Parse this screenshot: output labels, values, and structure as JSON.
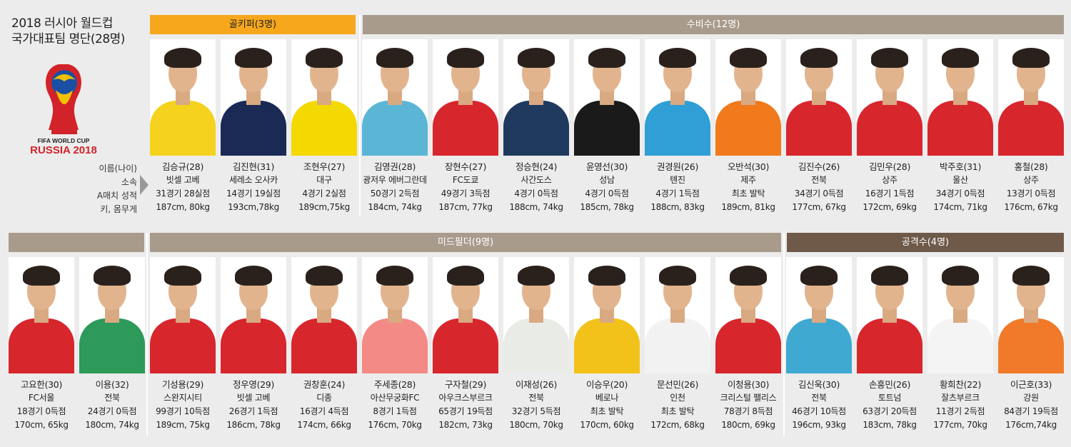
{
  "title": {
    "line1": "2018 러시아 월드컵",
    "line2": "국가대표팀 명단(28명)"
  },
  "logo": {
    "line1": "FIFA WORLD CUP",
    "line2": "RUSSIA 2018",
    "brand_color": "#d2232a"
  },
  "legend": [
    "이름(나이)",
    "소속",
    "A매치 성적",
    "키, 몸무게"
  ],
  "groups": {
    "gk": "골키퍼(3명)",
    "df": "수비수(12명)",
    "mf": "미드필더(9명)",
    "fw": "공격수(4명)"
  },
  "colors": {
    "gk_band": "#f6a71c",
    "df_band": "#a99b8c",
    "mf_band": "#a99b8c",
    "fw_band": "#6f5a4a",
    "korea_red": "#d8262d"
  },
  "row1": [
    {
      "name": "김승규(28)",
      "club": "빗셀 고베",
      "record": "31경기 28실점",
      "size": "187cm, 80kg",
      "shirt": "#f4d21d"
    },
    {
      "name": "김진현(31)",
      "club": "세레소 오사카",
      "record": "14경기 19실점",
      "size": "193cm,78kg",
      "shirt": "#1b2a55"
    },
    {
      "name": "조현우(27)",
      "club": "대구",
      "record": "4경기 2실점",
      "size": "189cm,75kg",
      "shirt": "#f3d900"
    },
    {
      "name": "김영권(28)",
      "club": "광저우 에버그란데",
      "record": "50경기 2득점",
      "size": "184cm, 74kg",
      "shirt": "#5bb6d6"
    },
    {
      "name": "장현수(27)",
      "club": "FC도쿄",
      "record": "49경기 3득점",
      "size": "187cm, 77kg",
      "shirt": "#d8262d"
    },
    {
      "name": "정승현(24)",
      "club": "사간도스",
      "record": "4경기 0득점",
      "size": "188cm, 74kg",
      "shirt": "#1f3a5e"
    },
    {
      "name": "윤영선(30)",
      "club": "성남",
      "record": "4경기 0득점",
      "size": "185cm, 78kg",
      "shirt": "#1a1a1a"
    },
    {
      "name": "권경원(26)",
      "club": "톈진",
      "record": "4경기 1득점",
      "size": "188cm, 83kg",
      "shirt": "#2f9fd6"
    },
    {
      "name": "오반석(30)",
      "club": "제주",
      "record": "최초 발탁",
      "size": "189cm, 81kg",
      "shirt": "#f07a1c"
    },
    {
      "name": "김진수(26)",
      "club": "전북",
      "record": "34경기 0득점",
      "size": "177cm, 67kg",
      "shirt": "#d8262d"
    },
    {
      "name": "김민우(28)",
      "club": "상주",
      "record": "16경기 1득점",
      "size": "172cm, 69kg",
      "shirt": "#d8262d"
    },
    {
      "name": "박주호(31)",
      "club": "울산",
      "record": "34경기 0득점",
      "size": "174cm, 71kg",
      "shirt": "#d8262d"
    },
    {
      "name": "홍철(28)",
      "club": "상주",
      "record": "13경기 0득점",
      "size": "176cm, 67kg",
      "shirt": "#d8262d"
    }
  ],
  "row2": [
    {
      "name": "고요한(30)",
      "club": "FC서울",
      "record": "18경기 0득점",
      "size": "170cm, 65kg",
      "shirt": "#d8262d"
    },
    {
      "name": "이용(32)",
      "club": "전북",
      "record": "24경기 0득점",
      "size": "180cm, 74kg",
      "shirt": "#2e9a5a"
    },
    {
      "name": "기성용(29)",
      "club": "스완지시티",
      "record": "99경기 10득점",
      "size": "189cm, 75kg",
      "shirt": "#d8262d"
    },
    {
      "name": "정우영(29)",
      "club": "빗셀 고베",
      "record": "26경기 1득점",
      "size": "186cm, 78kg",
      "shirt": "#d8262d"
    },
    {
      "name": "권창훈(24)",
      "club": "디종",
      "record": "16경기 4득점",
      "size": "174cm, 66kg",
      "shirt": "#d8262d"
    },
    {
      "name": "주세종(28)",
      "club": "아산무궁화FC",
      "record": "8경기 1득점",
      "size": "176cm, 70kg",
      "shirt": "#f38a86"
    },
    {
      "name": "구자철(29)",
      "club": "아우크스부르크",
      "record": "65경기 19득점",
      "size": "182cm, 73kg",
      "shirt": "#d8262d"
    },
    {
      "name": "이재성(26)",
      "club": "전북",
      "record": "32경기 5득점",
      "size": "180cm, 70kg",
      "shirt": "#e9ece6"
    },
    {
      "name": "이승우(20)",
      "club": "베로나",
      "record": "최초 발탁",
      "size": "170cm, 60kg",
      "shirt": "#f2c21a"
    },
    {
      "name": "문선민(26)",
      "club": "인천",
      "record": "최초 발탁",
      "size": "172cm, 68kg",
      "shirt": "#f2f2f2"
    },
    {
      "name": "이청용(30)",
      "club": "크리스털 팰리스",
      "record": "78경기 8득점",
      "size": "180cm, 69kg",
      "shirt": "#d8262d"
    },
    {
      "name": "김신욱(30)",
      "club": "전북",
      "record": "46경기 10득점",
      "size": "196cm, 93kg",
      "shirt": "#3fa9d1"
    },
    {
      "name": "손흥민(26)",
      "club": "토트넘",
      "record": "63경기 20득점",
      "size": "183cm, 78kg",
      "shirt": "#d8262d"
    },
    {
      "name": "황희찬(22)",
      "club": "잘츠부르크",
      "record": "11경기 2득점",
      "size": "177cm, 70kg",
      "shirt": "#f4f4f4"
    },
    {
      "name": "이근호(33)",
      "club": "강원",
      "record": "84경기  19득점",
      "size": "176cm,74kg",
      "shirt": "#f07a2a"
    }
  ]
}
